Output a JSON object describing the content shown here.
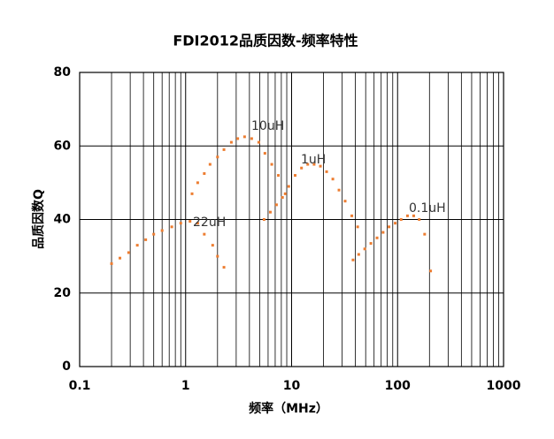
{
  "chart_data": {
    "type": "scatter",
    "title": "FDI2012品质因数-频率特性",
    "x_label": "频率（MHz）",
    "y_label": "品质因数Q",
    "xlog": true,
    "grid": true,
    "minor_grid": true,
    "xlim": [
      0.1,
      1000
    ],
    "xticks": [
      0.1,
      1,
      10,
      100,
      1000
    ],
    "ylim": [
      0,
      80
    ],
    "yticks": [
      0,
      20,
      40,
      60,
      80
    ],
    "series": [
      {
        "name": "22uH",
        "color": "#ed7d31",
        "x": [
          0.2,
          0.24,
          0.29,
          0.35,
          0.42,
          0.5,
          0.6,
          0.74,
          0.9,
          1.1,
          1.3,
          1.5,
          1.8,
          2.0,
          2.3
        ],
        "values": [
          28,
          29.5,
          31,
          33,
          34.5,
          36,
          37,
          38,
          39,
          39.5,
          39,
          36,
          33,
          30,
          27
        ]
      },
      {
        "name": "10uH",
        "color": "#ed7d31",
        "x": [
          1.15,
          1.3,
          1.5,
          1.7,
          2.0,
          2.3,
          2.7,
          3.1,
          3.6,
          4.2,
          4.9,
          5.6,
          6.5,
          7.5,
          8.7
        ],
        "values": [
          47,
          50,
          52.5,
          55,
          57,
          59,
          61,
          62,
          62.5,
          62,
          61,
          58,
          55,
          52,
          47
        ]
      },
      {
        "name": "1uH",
        "color": "#ed7d31",
        "x": [
          5.5,
          6.3,
          7.2,
          8.2,
          9.4,
          10.8,
          12.4,
          14.2,
          16.3,
          18.7,
          21.4,
          24.5,
          28,
          32,
          37,
          42
        ],
        "values": [
          40,
          42,
          44,
          46,
          49,
          52,
          54,
          55,
          55,
          54.5,
          53,
          51,
          48,
          45,
          41,
          38
        ]
      },
      {
        "name": "0.1uH",
        "color": "#ed7d31",
        "x": [
          38,
          43,
          49,
          56,
          64,
          73,
          83,
          95,
          108,
          124,
          142,
          160,
          180,
          205
        ],
        "values": [
          29,
          30.5,
          32,
          33.5,
          35,
          36.5,
          38,
          39,
          40,
          41,
          41,
          40,
          36,
          26
        ]
      }
    ]
  }
}
